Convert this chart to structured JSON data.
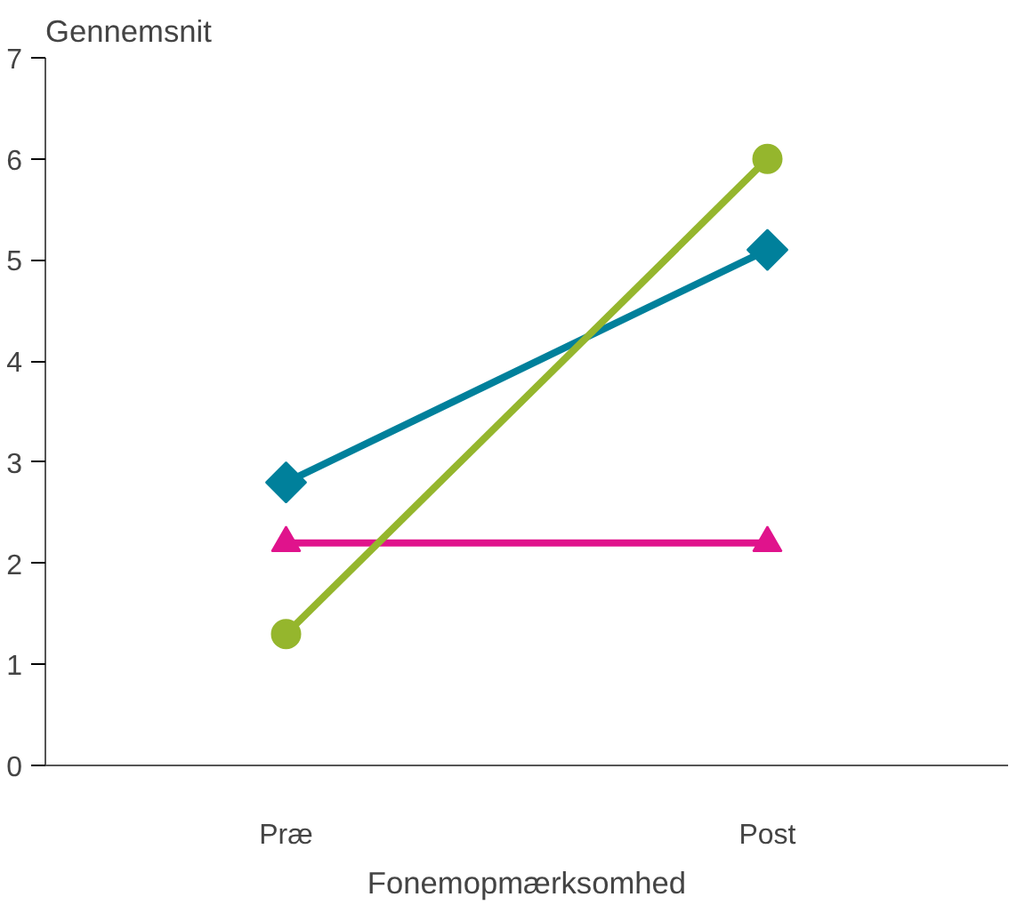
{
  "chart_data": {
    "type": "line",
    "ylabel": "Gennemsnit",
    "xlabel": "Fonemopmærksomhed",
    "categories": [
      "Præ",
      "Post"
    ],
    "series": [
      {
        "color": "#00809b",
        "marker": "diamond",
        "values": [
          2.8,
          5.1
        ]
      },
      {
        "color": "#e0138c",
        "marker": "triangle",
        "values": [
          2.2,
          2.2
        ]
      },
      {
        "color": "#95b62d",
        "marker": "circle",
        "values": [
          1.3,
          6.0
        ]
      }
    ],
    "ylim": [
      0,
      7
    ],
    "yticks": [
      0,
      1,
      2,
      3,
      4,
      5,
      6,
      7
    ],
    "grid": false
  }
}
